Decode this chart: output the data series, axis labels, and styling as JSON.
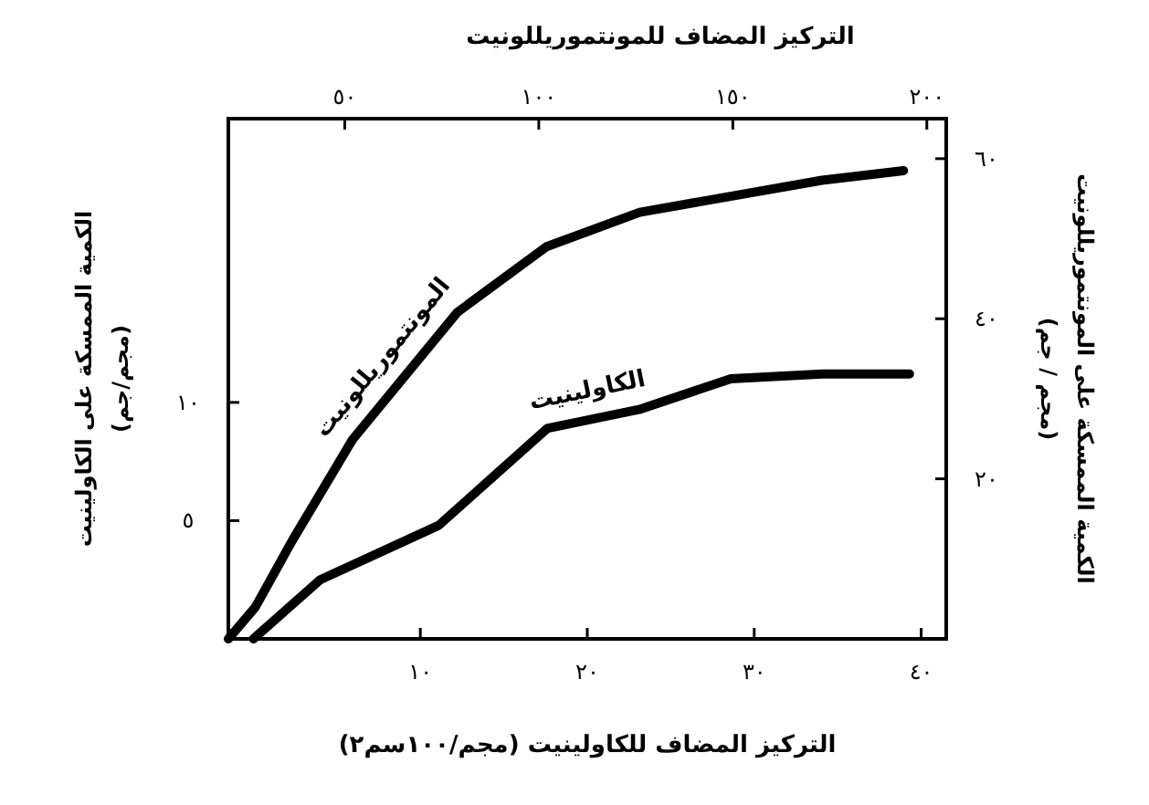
{
  "chart_data": [
    {
      "type": "line",
      "xlabel": "التركيز المضاف للكاولينيت (مجم/١٠٠سم٢)",
      "ylabel": "الكمية الممسكة على الكاولينيت (مجم/جم)",
      "xlim": [
        -1.5,
        41.5
      ],
      "xticks": [
        {
          "value": 10,
          "label": "١٠"
        },
        {
          "value": 20,
          "label": "٢٠"
        },
        {
          "value": 30,
          "label": "٣٠"
        },
        {
          "value": 40,
          "label": "٤٠"
        }
      ],
      "ylim": [
        0,
        22
      ],
      "yticks": [
        {
          "value": 5,
          "label": "٥"
        },
        {
          "value": 10,
          "label": "١٠"
        }
      ],
      "marker": "none",
      "line_style": "solid",
      "series": [
        {
          "name": "الكاولينيت",
          "color": "#000000",
          "x": [
            0,
            4,
            11.1,
            17.6,
            23.1,
            28.6,
            34.1,
            39.3
          ],
          "values": [
            0,
            2.5,
            4.8,
            8.9,
            9.7,
            11,
            11.2,
            11.2
          ]
        }
      ]
    },
    {
      "type": "line",
      "xlabel": "التركيز المضاف للمونتموريللونيت",
      "ylabel": "الكمية الممسكة على المونتموريللونيت (مجم / جم)",
      "xlim": [
        20,
        205
      ],
      "xticks": [
        {
          "value": 50,
          "label": "٥٠"
        },
        {
          "value": 100,
          "label": "١٠٠"
        },
        {
          "value": 150,
          "label": "١٥٠"
        },
        {
          "value": 200,
          "label": "٢٠٠"
        }
      ],
      "ylim": [
        0,
        65
      ],
      "yticks": [
        {
          "value": 20,
          "label": "٢٠"
        },
        {
          "value": 40,
          "label": "٤٠"
        },
        {
          "value": 60,
          "label": "٦٠"
        }
      ],
      "marker": "none",
      "line_style": "solid",
      "series": [
        {
          "name": "المونتموريللونيت",
          "color": "#000000",
          "x": [
            20,
            27,
            36.5,
            52,
            79,
            102,
            126,
            173,
            194
          ],
          "values": [
            0,
            4,
            12.3,
            24.9,
            40.8,
            49,
            53.3,
            57.3,
            58.5
          ]
        }
      ]
    }
  ]
}
